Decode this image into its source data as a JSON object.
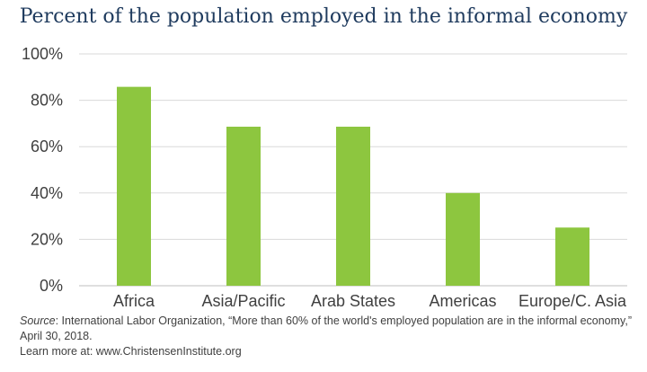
{
  "colors": {
    "bar": "#8dc63f",
    "grid": "#d9d9d9",
    "axis": "#bfbfbf",
    "title": "#1f3b5e",
    "text": "#404040"
  },
  "chart_data": {
    "type": "bar",
    "title": "Percent of the population employed in the informal economy",
    "categories": [
      "Africa",
      "Asia/Pacific",
      "Arab States",
      "Americas",
      "Europe/C. Asia"
    ],
    "values": [
      85.8,
      68.6,
      68.6,
      40.0,
      25.1
    ],
    "y_ticks": [
      "0%",
      "20%",
      "40%",
      "60%",
      "80%",
      "100%"
    ],
    "ylim": [
      0,
      100
    ],
    "grid": true,
    "legend": "none"
  },
  "footer": {
    "source_label": "Source",
    "source_text": ": International Labor Organization, “More than 60% of the world's employed population are in the informal economy,” April 30, 2018.",
    "learn_more": "Learn more at: www.ChristensenInstitute.org"
  }
}
